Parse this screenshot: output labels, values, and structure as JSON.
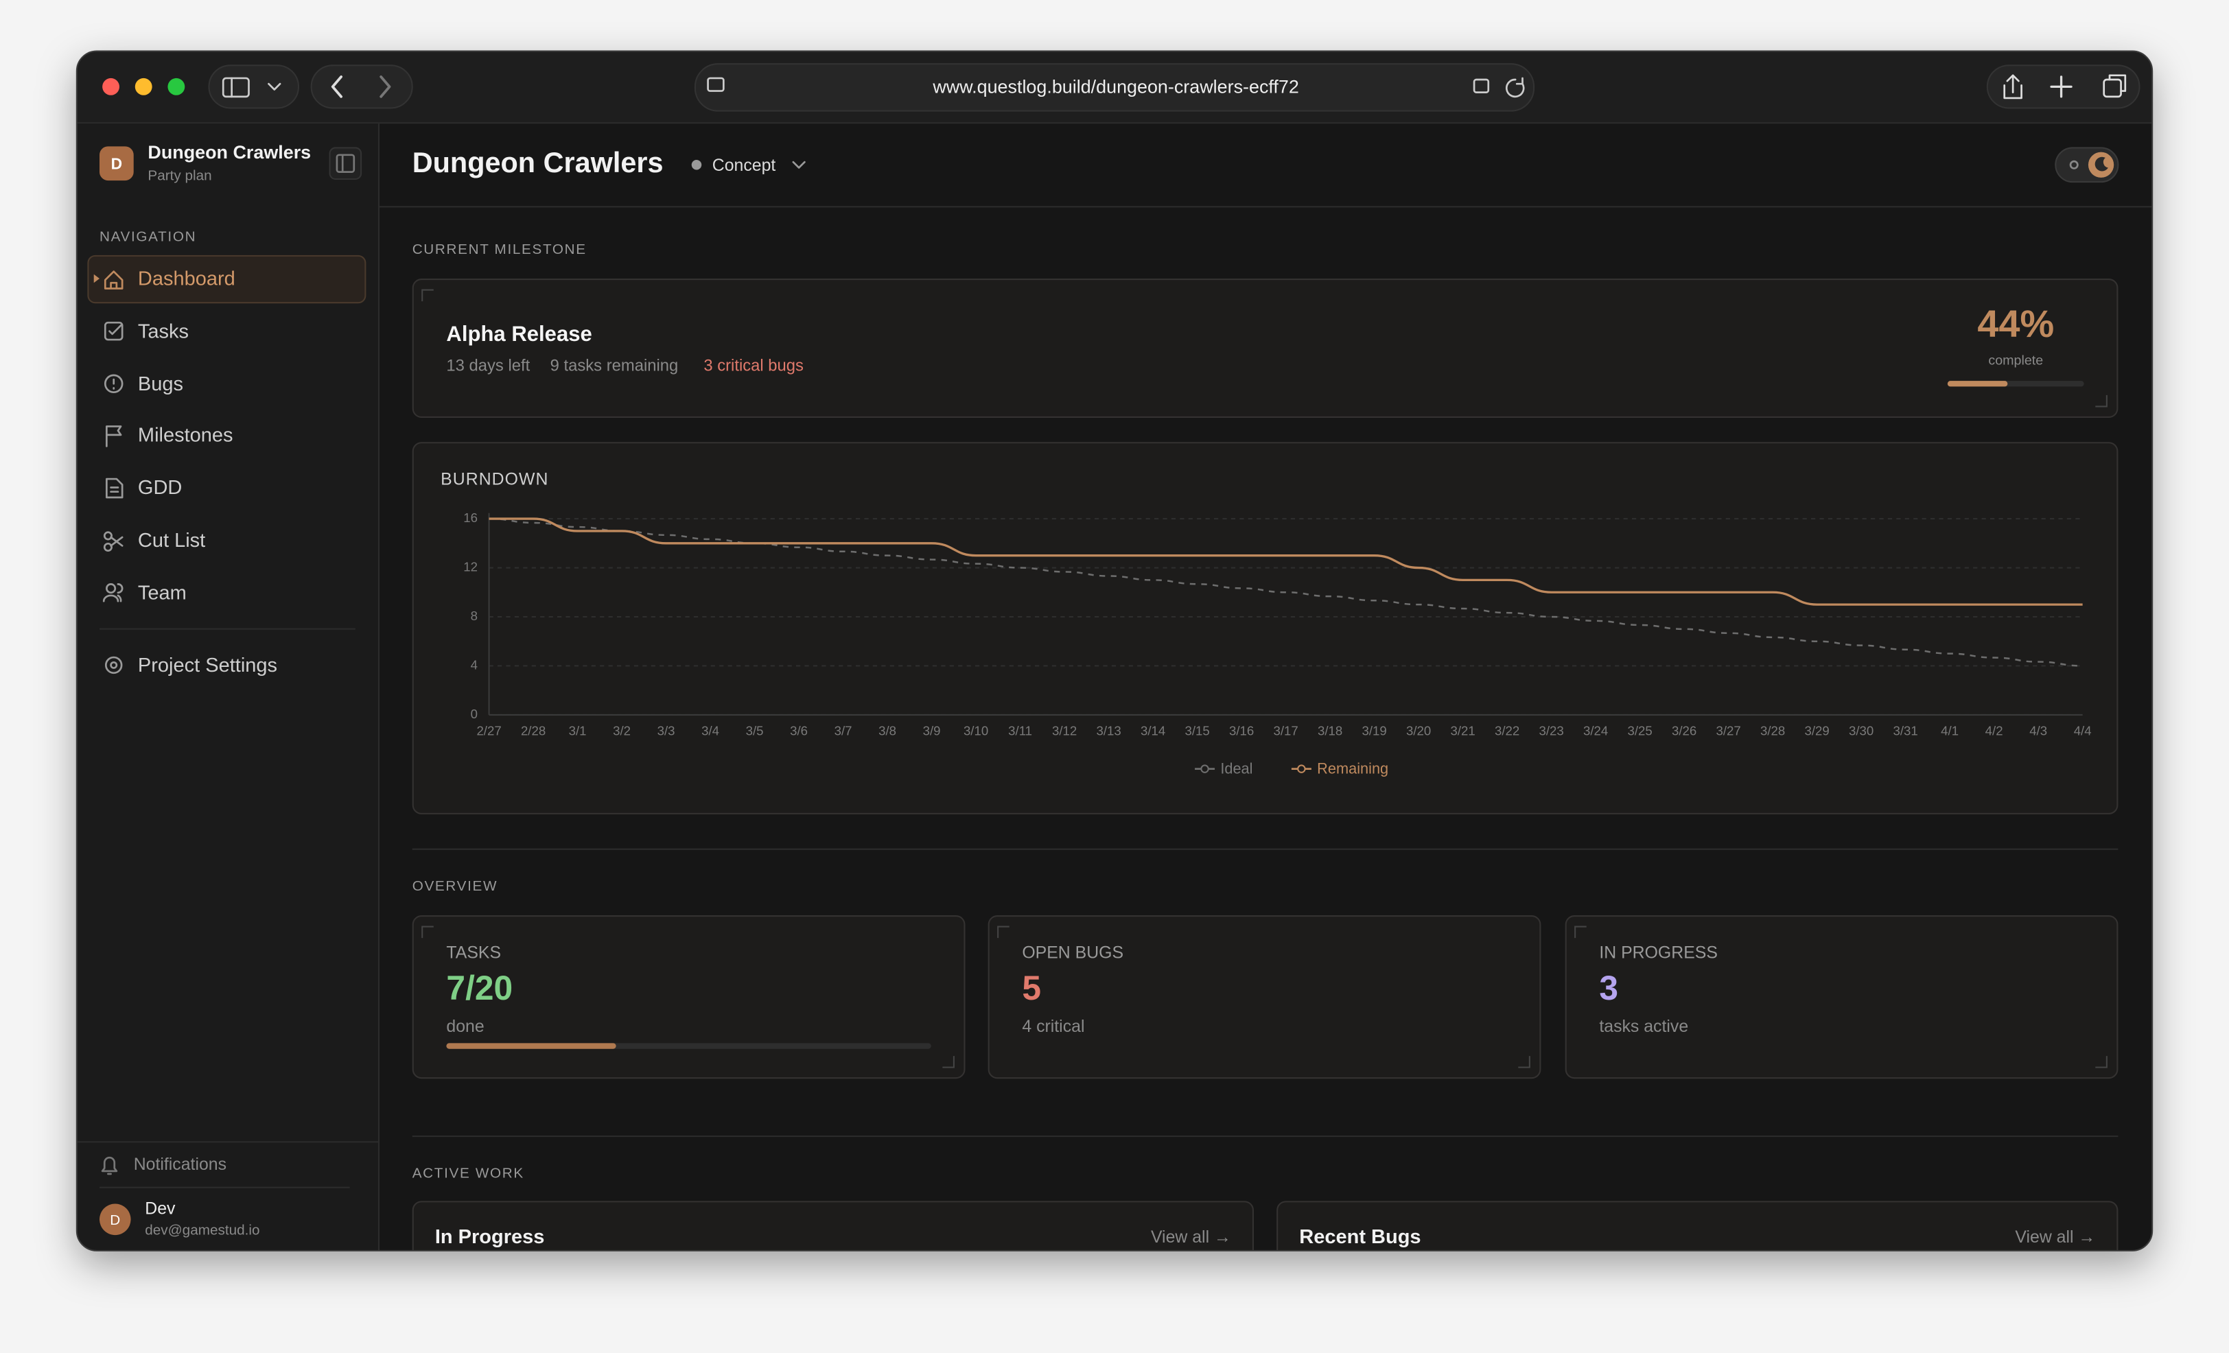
{
  "browser": {
    "url": "www.questlog.build/dungeon-crawlers-ecff72"
  },
  "sidebar": {
    "avatar": "D",
    "project": "Dungeon Crawlers",
    "subtitle": "Party plan",
    "section": "NAVIGATION",
    "nav": [
      "Dashboard",
      "Tasks",
      "Bugs",
      "Milestones",
      "GDD",
      "Cut List",
      "Team"
    ],
    "settings": "Project Settings",
    "notifications": "Notifications",
    "user": {
      "avatar": "D",
      "name": "Dev",
      "email": "dev@gamestud.io"
    }
  },
  "header": {
    "title": "Dungeon Crawlers",
    "status": "Concept"
  },
  "milestone": {
    "label": "CURRENT MILESTONE",
    "name": "Alpha Release",
    "days_left": "13 days left",
    "tasks_remaining": "9 tasks remaining",
    "critical_bugs": "3 critical bugs",
    "percent": 44,
    "percent_label": "44%",
    "complete": "complete"
  },
  "chart_data": {
    "type": "line",
    "title": "BURNDOWN",
    "x": [
      "2/27",
      "2/28",
      "3/1",
      "3/2",
      "3/3",
      "3/4",
      "3/5",
      "3/6",
      "3/7",
      "3/8",
      "3/9",
      "3/10",
      "3/11",
      "3/12",
      "3/13",
      "3/14",
      "3/15",
      "3/16",
      "3/17",
      "3/18",
      "3/19",
      "3/20",
      "3/21",
      "3/22",
      "3/23",
      "3/24",
      "3/25",
      "3/26",
      "3/27",
      "3/28",
      "3/29",
      "3/30",
      "3/31",
      "4/1",
      "4/2",
      "4/3",
      "4/4"
    ],
    "series": [
      {
        "name": "Ideal",
        "color": "#6e6e6e",
        "dashed": true,
        "values": [
          16,
          15.67,
          15.33,
          15,
          14.67,
          14.33,
          14,
          13.67,
          13.33,
          13,
          12.67,
          12.33,
          12,
          11.67,
          11.33,
          11,
          10.67,
          10.33,
          10,
          9.67,
          9.33,
          9,
          8.67,
          8.33,
          8,
          7.67,
          7.33,
          7,
          6.67,
          6.33,
          6,
          5.67,
          5.33,
          5,
          4.67,
          4.33,
          4
        ]
      },
      {
        "name": "Remaining",
        "color": "#c08a5e",
        "dashed": false,
        "values": [
          16,
          16,
          15,
          15,
          14,
          14,
          14,
          14,
          14,
          14,
          14,
          13,
          13,
          13,
          13,
          13,
          13,
          13,
          13,
          13,
          13,
          12,
          11,
          11,
          10,
          10,
          10,
          10,
          10,
          10,
          9,
          9,
          9,
          9,
          9,
          9,
          9
        ]
      }
    ],
    "ylim": [
      0,
      16
    ],
    "yticks": [
      0,
      4,
      8,
      12,
      16
    ],
    "grid": true,
    "legend": "bottom"
  },
  "overview": {
    "label": "OVERVIEW",
    "tasks": {
      "label": "TASKS",
      "done": 7,
      "total": 20,
      "value": "7/20",
      "sub": "done"
    },
    "bugs": {
      "label": "OPEN BUGS",
      "value": "5",
      "sub": "4 critical"
    },
    "in_progress": {
      "label": "IN PROGRESS",
      "value": "3",
      "sub": "tasks active"
    }
  },
  "active_work": {
    "label": "ACTIVE WORK",
    "cards": [
      {
        "title": "In Progress",
        "link": "View all →"
      },
      {
        "title": "Recent Bugs",
        "link": "View all →"
      }
    ]
  }
}
